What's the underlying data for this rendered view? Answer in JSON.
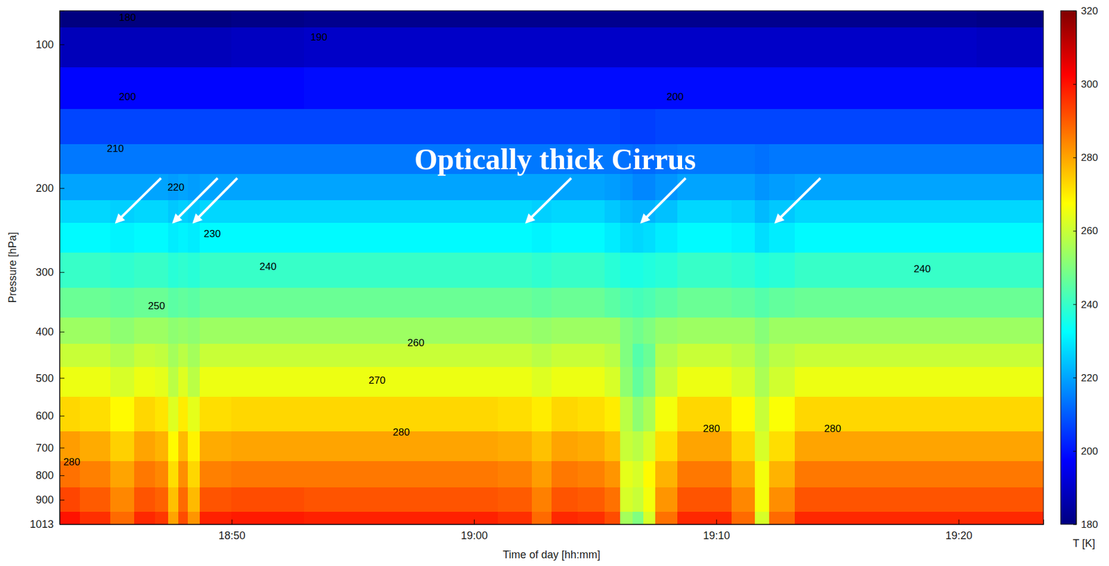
{
  "chart_data": {
    "type": "heatmap",
    "x_label": "Time of day [hh:mm]",
    "y_label": "Pressure [hPa]",
    "clabel": "T [K]",
    "annotation": "Optically thick Cirrus",
    "log": "y",
    "color": "jet",
    "xlim": [
      1122.9,
      1163.5
    ],
    "xticks": [
      {
        "value": 1130,
        "label": "18:50"
      },
      {
        "value": 1140,
        "label": "19:00"
      },
      {
        "value": 1150,
        "label": "19:10"
      },
      {
        "value": 1160,
        "label": "19:20"
      }
    ],
    "ylim": [
      1013,
      85
    ],
    "yticks": [
      100,
      200,
      300,
      400,
      500,
      600,
      700,
      800,
      900,
      1013
    ],
    "clim": [
      180,
      320
    ],
    "cticks": [
      180,
      200,
      220,
      240,
      260,
      280,
      300,
      320
    ],
    "x": [
      1123,
      1124.5,
      1125.5,
      1126.5,
      1127.2,
      1127.6,
      1128,
      1128.4,
      1129,
      1131,
      1135,
      1140,
      1142,
      1142.8,
      1143.6,
      1145,
      1145.8,
      1146.3,
      1146.8,
      1147.2,
      1147.8,
      1149,
      1150,
      1151.3,
      1151.9,
      1152.5,
      1154,
      1158,
      1163.5
    ],
    "y": [
      85,
      100,
      125,
      150,
      175,
      200,
      225,
      250,
      300,
      350,
      400,
      450,
      500,
      600,
      700,
      800,
      900,
      1013
    ],
    "values": [
      [
        180,
        188,
        198,
        207,
        214,
        220,
        227,
        232,
        240,
        247,
        254,
        260,
        265,
        273,
        281,
        287,
        293,
        300
      ],
      [
        180,
        188,
        198,
        207,
        214,
        220,
        227,
        232,
        240,
        247,
        254,
        260,
        265,
        272,
        279,
        285,
        290,
        296
      ],
      [
        180,
        188,
        198,
        207,
        214,
        220,
        226,
        231,
        239,
        246,
        252,
        257,
        262,
        268,
        274,
        280,
        284,
        288
      ],
      [
        180,
        188,
        198,
        207,
        214,
        220,
        227,
        232,
        240,
        247,
        254,
        260,
        265,
        273,
        280,
        286,
        291,
        297
      ],
      [
        180,
        188,
        198,
        207,
        214,
        220,
        227,
        232,
        240,
        247,
        254,
        259,
        264,
        271,
        278,
        284,
        289,
        295
      ],
      [
        180,
        188,
        198,
        207,
        214,
        219,
        225,
        230,
        238,
        245,
        252,
        255,
        258,
        263,
        268,
        272,
        276,
        280
      ],
      [
        180,
        188,
        198,
        207,
        214,
        220,
        226,
        231,
        239,
        246,
        253,
        258,
        263,
        270,
        277,
        283,
        288,
        292
      ],
      [
        180,
        188,
        198,
        207,
        214,
        219,
        225,
        230,
        238,
        245,
        252,
        255,
        258,
        264,
        269,
        273,
        277,
        282
      ],
      [
        180,
        188,
        198,
        207,
        214,
        220,
        227,
        232,
        240,
        247,
        254,
        260,
        265,
        272,
        279,
        285,
        291,
        298
      ],
      [
        181,
        189,
        198,
        207,
        214,
        220,
        227,
        232,
        240,
        247,
        254,
        260,
        265,
        273,
        280,
        286,
        292,
        299
      ],
      [
        182,
        190,
        199,
        207,
        214,
        220,
        227,
        232,
        240,
        247,
        254,
        260,
        265,
        273,
        280,
        286,
        291,
        298
      ],
      [
        182,
        190,
        199,
        207,
        214,
        220,
        227,
        232,
        240,
        247,
        254,
        260,
        265,
        273,
        280,
        286,
        291,
        298
      ],
      [
        182,
        190,
        199,
        207,
        214,
        220,
        227,
        232,
        240,
        247,
        254,
        260,
        265,
        272,
        279,
        285,
        290,
        296
      ],
      [
        182,
        190,
        199,
        207,
        214,
        220,
        226,
        231,
        239,
        246,
        253,
        258,
        263,
        270,
        276,
        281,
        285,
        288
      ],
      [
        182,
        190,
        199,
        207,
        214,
        220,
        227,
        232,
        240,
        247,
        254,
        260,
        265,
        273,
        280,
        286,
        291,
        297
      ],
      [
        182,
        190,
        199,
        207,
        214,
        220,
        227,
        232,
        240,
        247,
        254,
        260,
        265,
        272,
        279,
        285,
        290,
        296
      ],
      [
        182,
        190,
        199,
        207,
        214,
        219,
        225,
        230,
        238,
        245,
        254,
        258,
        262,
        270,
        276,
        282,
        287,
        292
      ],
      [
        182,
        190,
        199,
        206,
        213,
        218,
        223,
        228,
        236,
        243,
        250,
        250,
        252,
        258,
        260,
        264,
        262,
        255
      ],
      [
        182,
        190,
        199,
        206,
        212,
        216,
        222,
        227,
        236,
        242,
        248,
        244,
        246,
        252,
        258,
        262,
        260,
        250
      ],
      [
        182,
        190,
        199,
        206,
        212,
        216,
        222,
        228,
        237,
        243,
        250,
        247,
        250,
        256,
        262,
        268,
        266,
        262
      ],
      [
        182,
        190,
        199,
        207,
        213,
        218,
        224,
        230,
        238,
        245,
        253,
        257,
        260,
        266,
        272,
        278,
        282,
        287
      ],
      [
        182,
        190,
        199,
        207,
        214,
        220,
        227,
        232,
        240,
        247,
        254,
        260,
        265,
        273,
        280,
        286,
        291,
        297
      ],
      [
        182,
        190,
        199,
        207,
        214,
        220,
        227,
        232,
        240,
        247,
        254,
        260,
        265,
        273,
        280,
        286,
        291,
        297
      ],
      [
        182,
        190,
        199,
        207,
        214,
        220,
        226,
        231,
        239,
        246,
        254,
        258,
        262,
        268,
        273,
        279,
        284,
        288
      ],
      [
        182,
        190,
        199,
        207,
        213,
        218,
        223,
        228,
        237,
        244,
        251,
        254,
        256,
        260,
        262,
        266,
        266,
        262
      ],
      [
        182,
        190,
        199,
        207,
        214,
        219,
        225,
        230,
        238,
        246,
        254,
        258,
        261,
        267,
        272,
        278,
        283,
        288
      ],
      [
        182,
        190,
        199,
        207,
        214,
        220,
        227,
        232,
        240,
        247,
        254,
        260,
        265,
        273,
        280,
        286,
        291,
        297
      ],
      [
        182,
        190,
        199,
        207,
        214,
        220,
        227,
        232,
        240,
        247,
        254,
        260,
        265,
        273,
        280,
        286,
        291,
        297
      ],
      [
        181,
        189,
        199,
        207,
        214,
        220,
        227,
        232,
        240,
        247,
        254,
        260,
        265,
        273,
        280,
        286,
        291,
        297
      ]
    ],
    "contour_labels": [
      {
        "x": 1125.7,
        "y": 88,
        "value": 180
      },
      {
        "x": 1133.6,
        "y": 97,
        "value": 190
      },
      {
        "x": 1125.7,
        "y": 129,
        "value": 200
      },
      {
        "x": 1148.3,
        "y": 129,
        "value": 200
      },
      {
        "x": 1125.2,
        "y": 166,
        "value": 210
      },
      {
        "x": 1127.7,
        "y": 200,
        "value": 220
      },
      {
        "x": 1129.2,
        "y": 250,
        "value": 230
      },
      {
        "x": 1131.5,
        "y": 293,
        "value": 240
      },
      {
        "x": 1158.5,
        "y": 296,
        "value": 240
      },
      {
        "x": 1126.9,
        "y": 354,
        "value": 250
      },
      {
        "x": 1137.6,
        "y": 423,
        "value": 260
      },
      {
        "x": 1136,
        "y": 507,
        "value": 270
      },
      {
        "x": 1137,
        "y": 652,
        "value": 280
      },
      {
        "x": 1149.8,
        "y": 641,
        "value": 280
      },
      {
        "x": 1154.8,
        "y": 640,
        "value": 280
      },
      {
        "x": 1123.4,
        "y": 753,
        "value": 280
      }
    ]
  }
}
